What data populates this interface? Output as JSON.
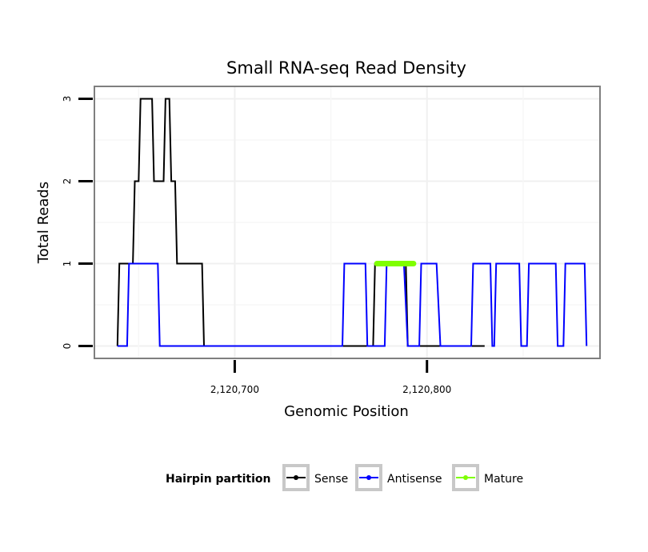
{
  "chart_data": {
    "type": "line",
    "title": "Small RNA-seq Read Density",
    "xlabel": "Genomic Position",
    "ylabel": "Total Reads",
    "xlim": [
      2120627,
      2120890
    ],
    "ylim": [
      -0.15,
      3.15
    ],
    "x_ticks": [
      2120700,
      2120800
    ],
    "x_tick_labels": [
      "2,120,700",
      "2,120,800"
    ],
    "x_grid": [
      2120650,
      2120700,
      2120750,
      2120800,
      2120850
    ],
    "y_ticks": [
      0,
      1,
      2,
      3
    ],
    "y_tick_labels": [
      "0",
      "1",
      "2",
      "3"
    ],
    "grid": true,
    "legend": {
      "title": "Hairpin partition",
      "position": "bottom",
      "entries": [
        {
          "label": "Sense",
          "color": "#000000"
        },
        {
          "label": "Antisense",
          "color": "#0000ff"
        },
        {
          "label": "Mature",
          "color": "#7fff00"
        }
      ]
    },
    "series": [
      {
        "name": "Sense",
        "color": "#000000",
        "points": [
          [
            2120639,
            0
          ],
          [
            2120640,
            1
          ],
          [
            2120647,
            1
          ],
          [
            2120648,
            2
          ],
          [
            2120650,
            2
          ],
          [
            2120651,
            3
          ],
          [
            2120657,
            3
          ],
          [
            2120658,
            2
          ],
          [
            2120663,
            2
          ],
          [
            2120664,
            3
          ],
          [
            2120666,
            3
          ],
          [
            2120667,
            2
          ],
          [
            2120669,
            2
          ],
          [
            2120670,
            1
          ],
          [
            2120683,
            1
          ],
          [
            2120684,
            0
          ],
          [
            2120772,
            0
          ],
          [
            2120773,
            1
          ],
          [
            2120789,
            1
          ],
          [
            2120790,
            0
          ],
          [
            2120830,
            0
          ]
        ]
      },
      {
        "name": "Antisense",
        "color": "#0000ff",
        "points": [
          [
            2120639,
            0
          ],
          [
            2120644,
            0
          ],
          [
            2120645,
            1
          ],
          [
            2120660,
            1
          ],
          [
            2120661,
            0
          ],
          [
            2120756,
            0
          ],
          [
            2120757,
            1
          ],
          [
            2120768,
            1
          ],
          [
            2120769,
            0
          ],
          [
            2120778,
            0
          ],
          [
            2120779,
            1
          ],
          [
            2120788,
            1
          ],
          [
            2120790,
            0
          ],
          [
            2120796,
            0
          ],
          [
            2120797,
            1
          ],
          [
            2120805,
            1
          ],
          [
            2120807,
            0
          ],
          [
            2120823,
            0
          ],
          [
            2120824,
            1
          ],
          [
            2120833,
            1
          ],
          [
            2120834,
            0
          ],
          [
            2120835,
            0
          ],
          [
            2120836,
            1
          ],
          [
            2120848,
            1
          ],
          [
            2120849,
            0
          ],
          [
            2120852,
            0
          ],
          [
            2120853,
            1
          ],
          [
            2120867,
            1
          ],
          [
            2120868,
            0
          ],
          [
            2120871,
            0
          ],
          [
            2120872,
            1
          ],
          [
            2120882,
            1
          ],
          [
            2120883,
            0
          ]
        ]
      },
      {
        "name": "Mature",
        "color": "#7fff00",
        "points": [
          [
            2120774,
            1
          ],
          [
            2120793,
            1
          ]
        ]
      }
    ]
  }
}
